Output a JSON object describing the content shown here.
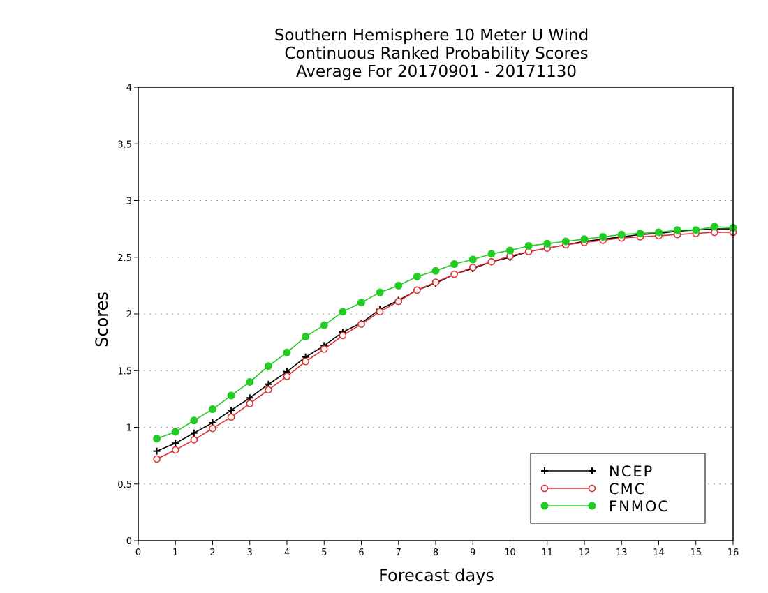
{
  "chart_data": {
    "type": "line",
    "title": [
      "Southern Hemisphere 10 Meter U Wind",
      "Continuous Ranked Probability Scores",
      "Average For 20170901 - 20171130"
    ],
    "xlabel": "Forecast days",
    "ylabel": "Scores",
    "xlim": [
      0,
      16
    ],
    "ylim": [
      0,
      4
    ],
    "xticks": [
      "0",
      "1",
      "2",
      "3",
      "4",
      "5",
      "6",
      "7",
      "8",
      "9",
      "10",
      "11",
      "12",
      "13",
      "14",
      "15",
      "16"
    ],
    "yticks": [
      "0",
      "0.5",
      "1",
      "1.5",
      "2",
      "2.5",
      "3",
      "3.5",
      "4"
    ],
    "grid": "horizontal-dotted",
    "legend_position": "bottom-right",
    "x": [
      0.5,
      1,
      1.5,
      2,
      2.5,
      3,
      3.5,
      4,
      4.5,
      5,
      5.5,
      6,
      6.5,
      7,
      7.5,
      8,
      8.5,
      9,
      9.5,
      10,
      10.5,
      11,
      11.5,
      12,
      12.5,
      13,
      13.5,
      14,
      14.5,
      15,
      15.5,
      16
    ],
    "series": [
      {
        "name": "NCEP",
        "color": "#000000",
        "marker": "plus",
        "values": [
          0.79,
          0.86,
          0.95,
          1.04,
          1.15,
          1.26,
          1.38,
          1.49,
          1.62,
          1.72,
          1.84,
          1.92,
          2.04,
          2.12,
          2.21,
          2.27,
          2.35,
          2.4,
          2.46,
          2.5,
          2.55,
          2.58,
          2.61,
          2.64,
          2.66,
          2.68,
          2.7,
          2.71,
          2.73,
          2.74,
          2.75,
          2.75
        ]
      },
      {
        "name": "CMC",
        "color": "#e03030",
        "marker": "open-circle",
        "values": [
          0.72,
          0.8,
          0.89,
          0.99,
          1.09,
          1.21,
          1.33,
          1.45,
          1.58,
          1.69,
          1.81,
          1.91,
          2.02,
          2.11,
          2.21,
          2.28,
          2.35,
          2.41,
          2.46,
          2.51,
          2.55,
          2.58,
          2.61,
          2.63,
          2.65,
          2.67,
          2.68,
          2.69,
          2.7,
          2.71,
          2.72,
          2.72
        ]
      },
      {
        "name": "FNMOC",
        "color": "#22cc22",
        "marker": "filled-circle",
        "values": [
          0.9,
          0.96,
          1.06,
          1.16,
          1.28,
          1.4,
          1.54,
          1.66,
          1.8,
          1.9,
          2.02,
          2.1,
          2.19,
          2.25,
          2.33,
          2.38,
          2.44,
          2.48,
          2.53,
          2.56,
          2.6,
          2.62,
          2.64,
          2.66,
          2.68,
          2.7,
          2.71,
          2.72,
          2.74,
          2.74,
          2.77,
          2.76
        ]
      }
    ]
  }
}
